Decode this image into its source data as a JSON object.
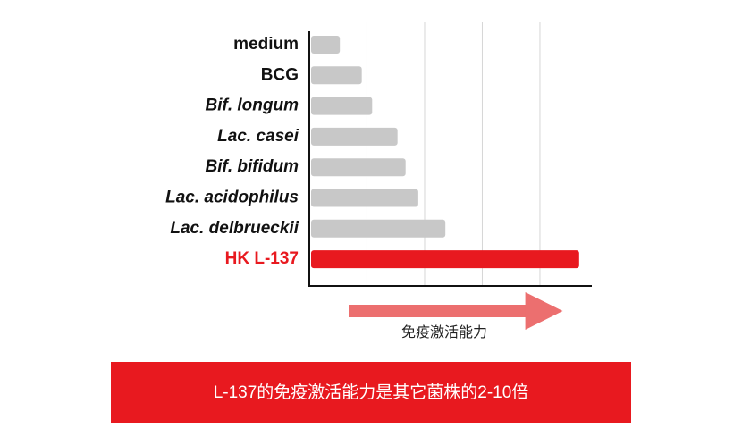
{
  "chart_data": {
    "type": "bar",
    "orientation": "horizontal",
    "categories": [
      "medium",
      "BCG",
      "Bif. longum",
      "Lac. casei",
      "Bif. bifidum",
      "Lac. acidophilus",
      "Lac. delbrueckii",
      "HK L-137"
    ],
    "values": [
      0.53,
      0.91,
      1.09,
      1.53,
      1.67,
      1.89,
      2.36,
      4.68
    ],
    "colors": [
      "#c8c8c8",
      "#c8c8c8",
      "#c8c8c8",
      "#c8c8c8",
      "#c8c8c8",
      "#c8c8c8",
      "#c8c8c8",
      "#e8191f"
    ],
    "label_colors": [
      "#111111",
      "#111111",
      "#111111",
      "#111111",
      "#111111",
      "#111111",
      "#111111",
      "#e8191f"
    ],
    "label_styles": [
      "normal",
      "normal",
      "italic",
      "italic",
      "italic",
      "italic",
      "italic",
      "normal"
    ],
    "xlim": [
      0,
      4.9
    ],
    "xticks": [
      1,
      2,
      3,
      4
    ],
    "grid": true,
    "x_label": "免疫激活能力",
    "banner": "L-137的免疫激活能力是其它菌株的2-10倍"
  }
}
